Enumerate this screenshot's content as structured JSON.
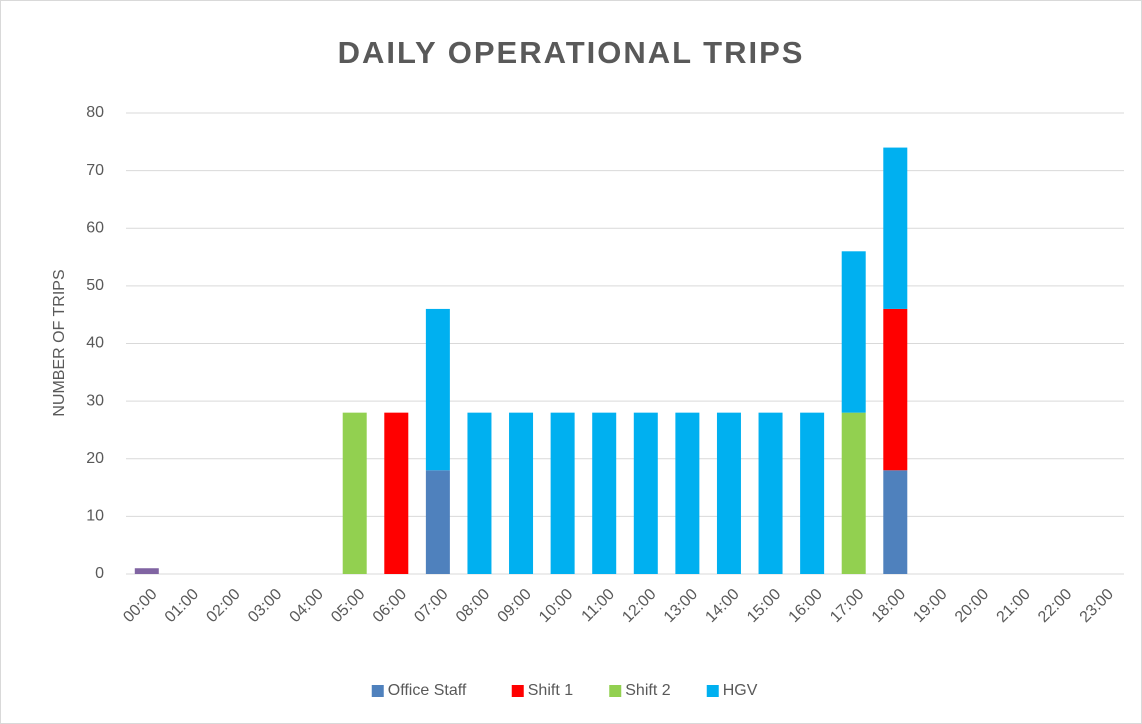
{
  "chart_data": {
    "type": "stacked_bar",
    "title": "DAILY OPERATIONAL TRIPS",
    "y_label": "NUMBER OF TRIPS",
    "categories": [
      "00:00",
      "01:00",
      "02:00",
      "03:00",
      "04:00",
      "05:00",
      "06:00",
      "07:00",
      "08:00",
      "09:00",
      "10:00",
      "11:00",
      "12:00",
      "13:00",
      "14:00",
      "15:00",
      "16:00",
      "17:00",
      "18:00",
      "19:00",
      "20:00",
      "21:00",
      "22:00",
      "23:00"
    ],
    "series": [
      {
        "name": "Office Staff",
        "color": "#4f81bd",
        "values": [
          null,
          null,
          null,
          null,
          null,
          null,
          null,
          18,
          null,
          null,
          null,
          null,
          null,
          null,
          null,
          null,
          null,
          null,
          18,
          null,
          null,
          null,
          null,
          null
        ]
      },
      {
        "name": "Shift 1",
        "color": "#ff0000",
        "values": [
          null,
          null,
          null,
          null,
          null,
          null,
          28,
          null,
          null,
          null,
          null,
          null,
          null,
          null,
          null,
          null,
          null,
          null,
          28,
          null,
          null,
          null,
          null,
          null
        ]
      },
      {
        "name": "Shift 2",
        "color": "#92d050",
        "values": [
          null,
          null,
          null,
          null,
          null,
          28,
          null,
          null,
          null,
          null,
          null,
          null,
          null,
          null,
          null,
          null,
          null,
          28,
          null,
          null,
          null,
          null,
          null,
          null
        ]
      },
      {
        "name": "HGV",
        "color": "#00b0f0",
        "values": [
          null,
          null,
          null,
          null,
          null,
          null,
          null,
          28,
          28,
          28,
          28,
          28,
          28,
          28,
          28,
          28,
          28,
          28,
          28,
          null,
          null,
          null,
          null,
          null
        ]
      },
      {
        "name": null,
        "color": "#8064a2",
        "values": [
          1,
          null,
          null,
          null,
          null,
          null,
          null,
          null,
          null,
          null,
          null,
          null,
          null,
          null,
          null,
          null,
          null,
          null,
          null,
          null,
          null,
          null,
          null,
          null
        ]
      }
    ],
    "ylim": [
      0,
      80
    ],
    "yticks": [
      0,
      10,
      20,
      30,
      40,
      50,
      60,
      70,
      80
    ],
    "grid": true,
    "legend": "bottom"
  }
}
